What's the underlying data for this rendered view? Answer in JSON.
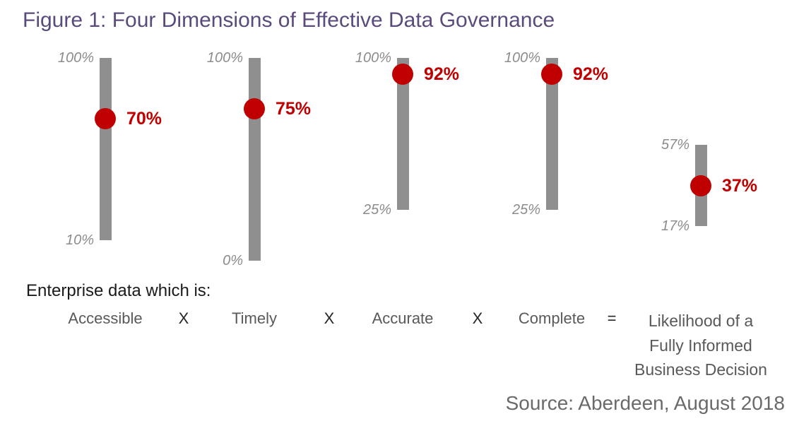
{
  "title": "Figure 1: Four Dimensions of Effective Data Governance",
  "source": "Source: Aberdeen, August 2018",
  "equation": {
    "intro": "Enterprise data which is:",
    "terms": [
      "Accessible",
      "Timely",
      "Accurate",
      "Complete"
    ],
    "operators": [
      "X",
      "X",
      "X",
      "="
    ],
    "result_lines": [
      "Likelihood of a",
      "Fully Informed",
      "Business Decision"
    ]
  },
  "colors": {
    "title": "#5b4b7d",
    "bar": "#8f8f8f",
    "dot": "#c00000",
    "value_label": "#c00000",
    "range_label": "#8c8c8c",
    "term_label": "#595959",
    "operator": "#262626",
    "intro_text": "#1a1a1a",
    "source_text": "#6a6a6a"
  },
  "chart_data": {
    "type": "dot-range",
    "title": "Figure 1: Four Dimensions of Effective Data Governance",
    "unit": "percent",
    "axis": {
      "shared_scale": true,
      "scale_note": "all bars share one vertical percentage scale, 100% aligned at top",
      "grid": false,
      "axes_hidden": true
    },
    "series": [
      {
        "category": "Accessible",
        "range_min": 10,
        "range_max": 100,
        "value": 70,
        "min_label": "10%",
        "max_label": "100%",
        "value_label": "70%"
      },
      {
        "category": "Timely",
        "range_min": 0,
        "range_max": 100,
        "value": 75,
        "min_label": "0%",
        "max_label": "100%",
        "value_label": "75%"
      },
      {
        "category": "Accurate",
        "range_min": 25,
        "range_max": 100,
        "value": 92,
        "min_label": "25%",
        "max_label": "100%",
        "value_label": "92%"
      },
      {
        "category": "Complete",
        "range_min": 25,
        "range_max": 100,
        "value": 92,
        "min_label": "25%",
        "max_label": "100%",
        "value_label": "92%"
      },
      {
        "category": "Likelihood of a Fully Informed Business Decision",
        "range_min": 17,
        "range_max": 57,
        "value": 37,
        "min_label": "17%",
        "max_label": "57%",
        "value_label": "37%"
      }
    ]
  }
}
